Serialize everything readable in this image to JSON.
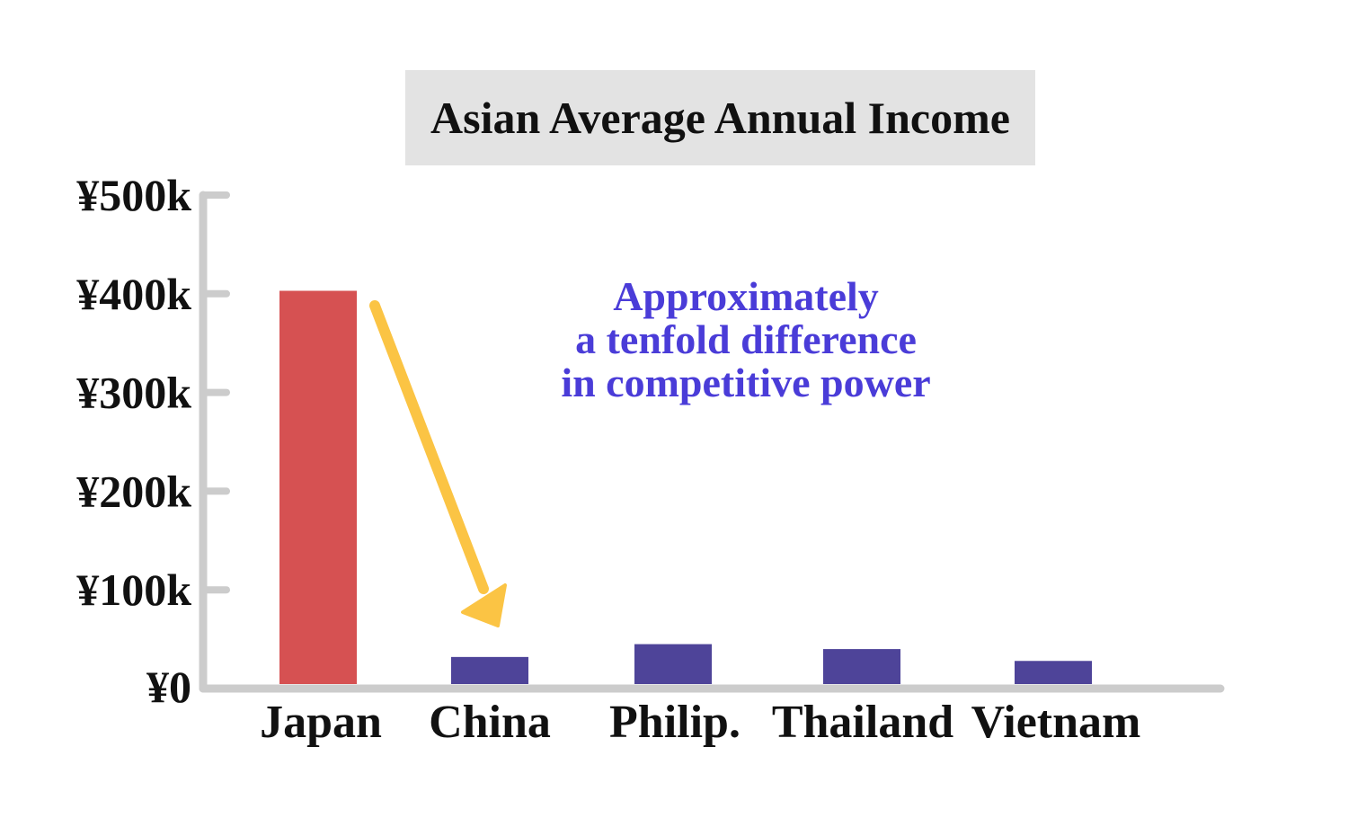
{
  "colors": {
    "highlight_bar": "#d65152",
    "other_bar": "#4e4499",
    "axis": "#cccccc",
    "arrow": "#fbc444",
    "annotation": "#4a3cd8",
    "title_bg": "#e3e3e3"
  },
  "chart_data": {
    "type": "bar",
    "title": "Asian Average Annual Income",
    "categories": [
      "Japan",
      "China",
      "Philip.",
      "Thailand",
      "Vietnam"
    ],
    "values": [
      403,
      32,
      45,
      40,
      28
    ],
    "unit": "k yen",
    "ylim": [
      0,
      500
    ],
    "yticks": [
      0,
      100,
      200,
      300,
      400,
      500
    ],
    "ytick_labels": [
      "¥0",
      "¥100k",
      "¥200k",
      "¥300k",
      "¥400k",
      "¥500k"
    ],
    "highlight_category": "Japan",
    "grid": false,
    "legend": "none",
    "annotation": {
      "lines": [
        "Approximately",
        "a tenfold difference",
        "in competitive power"
      ],
      "arrow_from": "Japan",
      "arrow_to": "China"
    }
  }
}
